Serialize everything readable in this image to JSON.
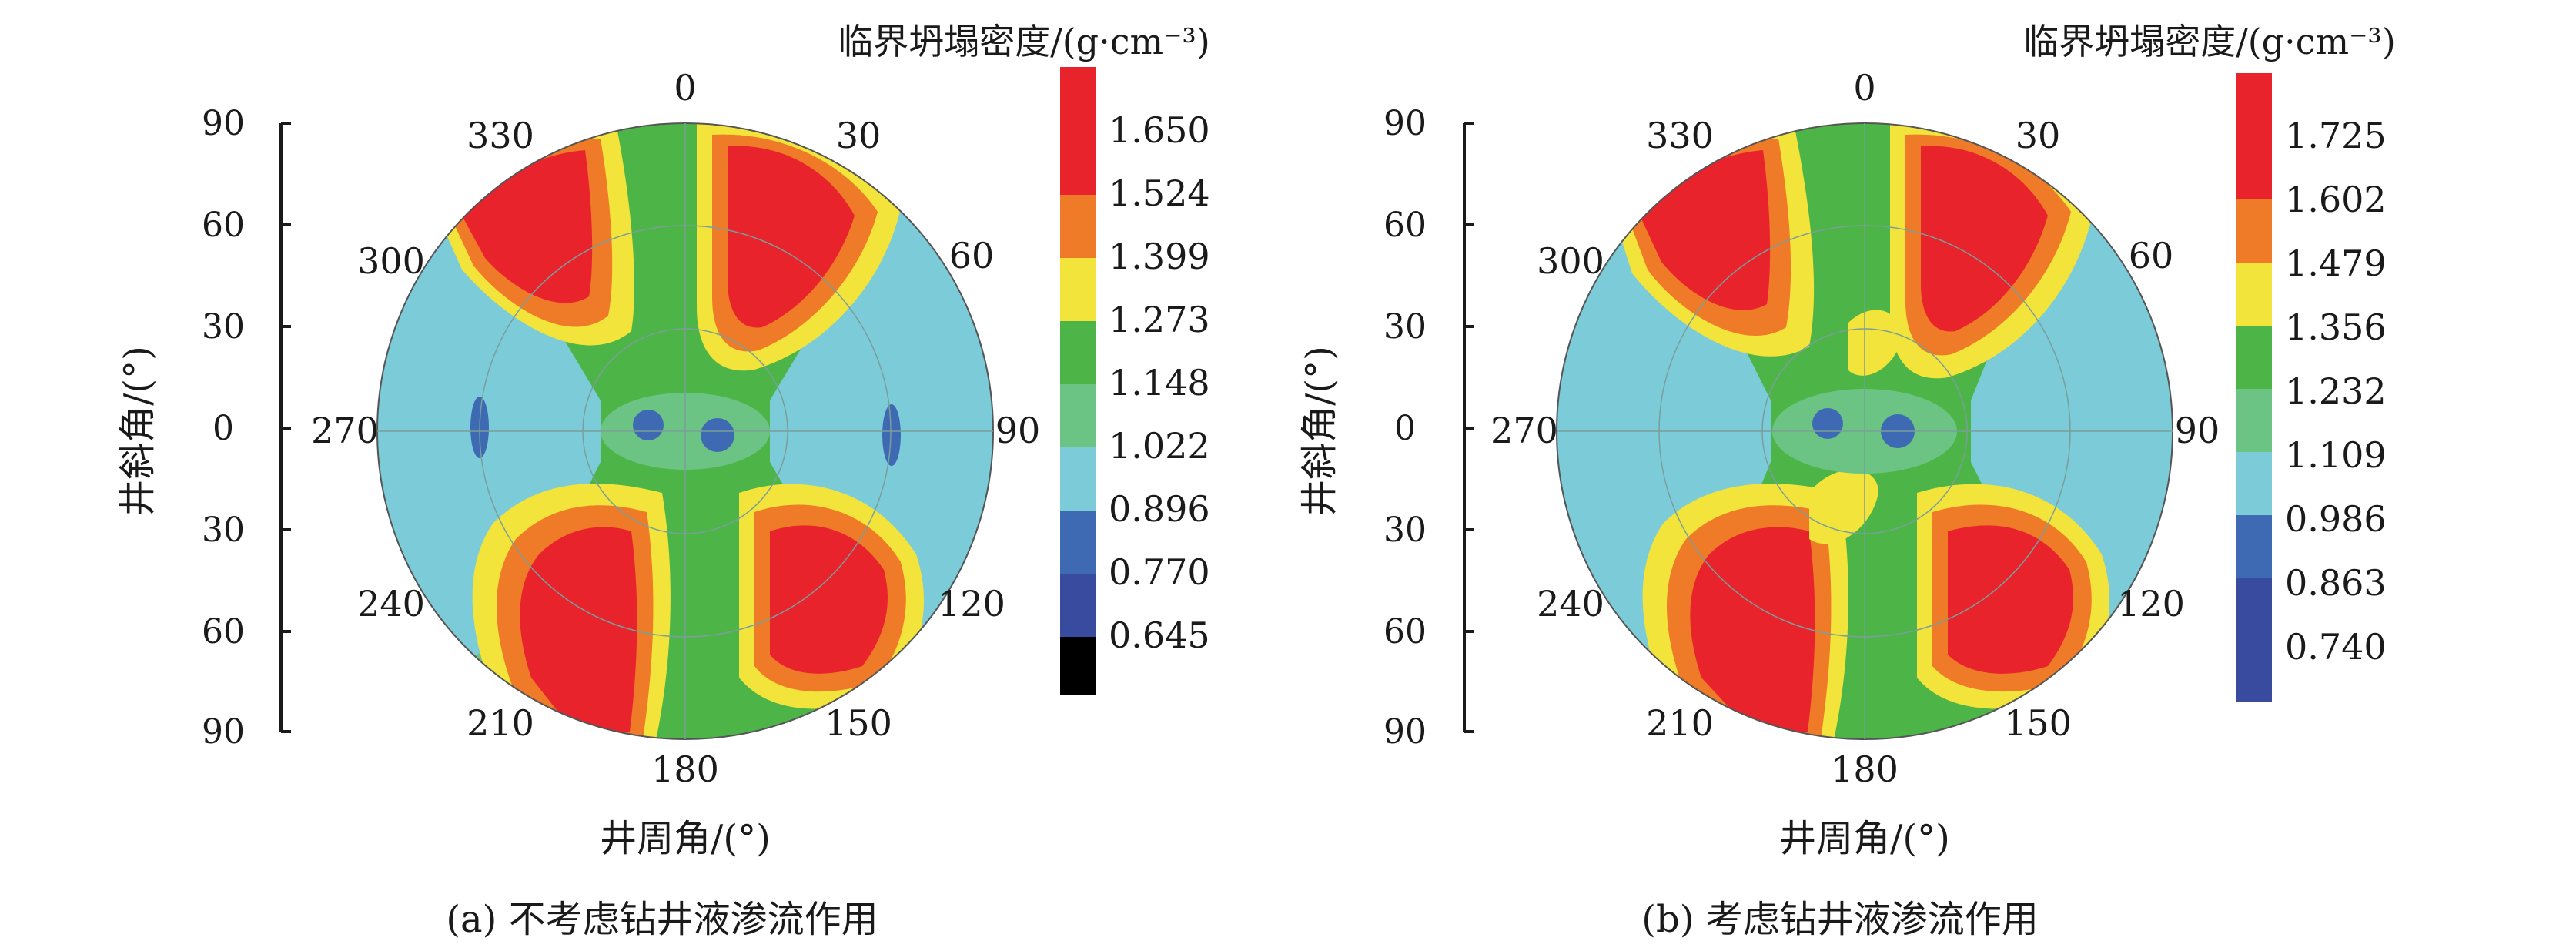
{
  "figure": {
    "panels": [
      {
        "caption": "(a) 不考虑钻井液渗流作用",
        "colorbar_title": "临界坍塌密度/(g·cm⁻³)",
        "theta_label": "井周角/(°)",
        "radial_label": "井斜角/(°)",
        "radial_ticks": [
          "90",
          "60",
          "30",
          "0",
          "30",
          "60",
          "90"
        ],
        "angle_ticks": [
          "0",
          "30",
          "60",
          "90",
          "120",
          "150",
          "180",
          "210",
          "240",
          "270",
          "300",
          "330"
        ],
        "colorbar_levels": [
          "1.650",
          "1.524",
          "1.399",
          "1.273",
          "1.148",
          "1.022",
          "0.896",
          "0.770",
          "0.645"
        ],
        "colorbar_colors": [
          "#e8232c",
          "#ef7a27",
          "#f2e43a",
          "#4db548",
          "#6cc484",
          "#7ccbd8",
          "#3e6ab4",
          "#394b9e",
          "#000000"
        ]
      },
      {
        "caption": "(b) 考虑钻井液渗流作用",
        "colorbar_title": "临界坍塌密度/(g·cm⁻³)",
        "theta_label": "井周角/(°)",
        "radial_label": "井斜角/(°)",
        "radial_ticks": [
          "90",
          "60",
          "30",
          "0",
          "30",
          "60",
          "90"
        ],
        "angle_ticks": [
          "0",
          "30",
          "60",
          "90",
          "120",
          "150",
          "180",
          "210",
          "240",
          "270",
          "300",
          "330"
        ],
        "colorbar_levels": [
          "1.725",
          "1.602",
          "1.479",
          "1.356",
          "1.232",
          "1.109",
          "0.986",
          "0.863",
          "0.740"
        ],
        "colorbar_colors": [
          "#e8232c",
          "#ef7a27",
          "#f2e43a",
          "#4db548",
          "#6cc484",
          "#7ccbd8",
          "#3e6ab4",
          "#394b9e"
        ]
      }
    ]
  },
  "chart_data": [
    {
      "type": "heatmap",
      "projection": "polar",
      "colorbar_title": "临界坍塌密度/(g·cm⁻³)",
      "theta_axis": {
        "label": "井周角/(°)",
        "ticks": [
          0,
          30,
          60,
          90,
          120,
          150,
          180,
          210,
          240,
          270,
          300,
          330
        ]
      },
      "radial_axis": {
        "label": "井斜角/(°)",
        "range": [
          0,
          90
        ],
        "ticks": [
          90,
          60,
          30,
          0,
          30,
          60,
          90
        ]
      },
      "levels": [
        0.645,
        0.77,
        0.896,
        1.022,
        1.148,
        1.273,
        1.399,
        1.524,
        1.65
      ],
      "features": {
        "max_regions_theta_deg": [
          15,
          150,
          205,
          345
        ],
        "min_regions_theta_deg": [
          90,
          270
        ],
        "low_center_spots": 2
      }
    },
    {
      "type": "heatmap",
      "projection": "polar",
      "colorbar_title": "临界坍塌密度/(g·cm⁻³)",
      "theta_axis": {
        "label": "井周角/(°)",
        "ticks": [
          0,
          30,
          60,
          90,
          120,
          150,
          180,
          210,
          240,
          270,
          300,
          330
        ]
      },
      "radial_axis": {
        "label": "井斜角/(°)",
        "range": [
          0,
          90
        ],
        "ticks": [
          90,
          60,
          30,
          0,
          30,
          60,
          90
        ]
      },
      "levels": [
        0.74,
        0.863,
        0.986,
        1.109,
        1.232,
        1.356,
        1.479,
        1.602,
        1.725
      ],
      "features": {
        "max_regions_theta_deg": [
          15,
          150,
          205,
          345
        ],
        "min_regions_theta_deg": [
          90,
          270
        ],
        "low_center_spots": 2
      }
    }
  ]
}
